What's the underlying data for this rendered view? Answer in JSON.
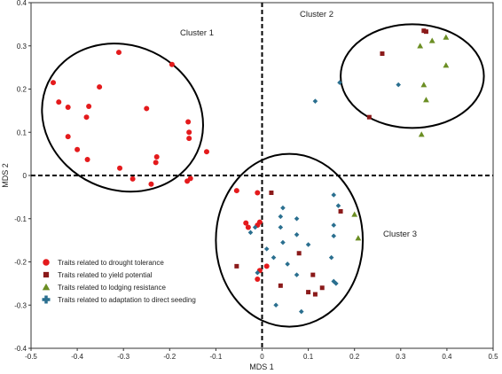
{
  "chart_data": {
    "type": "scatter",
    "title": "",
    "xlabel": "MDS 1",
    "ylabel": "MDS 2",
    "xlim": [
      -0.5,
      0.5
    ],
    "ylim": [
      -0.4,
      0.4
    ],
    "xticks": [
      "-0.5",
      "-0.4",
      "-0.3",
      "-0.2",
      "-0.1",
      "0",
      "0.1",
      "0.2",
      "0.3",
      "0.4",
      "0.5"
    ],
    "yticks": [
      "0.4",
      "0.3",
      "0.2",
      "0.1",
      "0",
      "-0.1",
      "-0.2",
      "-0.3",
      "-0.4"
    ],
    "reference_lines": {
      "x": 0,
      "y": 0,
      "style": "dashed"
    },
    "legend_position": "bottom-left",
    "series": [
      {
        "name": "Traits related to drought tolerance",
        "marker": "circle",
        "color": "#e41a1c",
        "points": [
          [
            -0.452,
            0.215
          ],
          [
            -0.44,
            0.17
          ],
          [
            -0.42,
            0.158
          ],
          [
            -0.375,
            0.16
          ],
          [
            -0.352,
            0.205
          ],
          [
            -0.31,
            0.285
          ],
          [
            -0.195,
            0.257
          ],
          [
            -0.25,
            0.155
          ],
          [
            -0.38,
            0.135
          ],
          [
            -0.16,
            0.124
          ],
          [
            -0.158,
            0.1
          ],
          [
            -0.42,
            0.09
          ],
          [
            -0.158,
            0.086
          ],
          [
            -0.4,
            0.06
          ],
          [
            -0.12,
            0.055
          ],
          [
            -0.378,
            0.037
          ],
          [
            -0.228,
            0.043
          ],
          [
            -0.23,
            0.03
          ],
          [
            -0.308,
            0.017
          ],
          [
            -0.28,
            -0.008
          ],
          [
            -0.162,
            -0.013
          ],
          [
            -0.155,
            -0.007
          ],
          [
            -0.24,
            -0.02
          ],
          [
            -0.055,
            -0.035
          ],
          [
            -0.01,
            -0.04
          ],
          [
            -0.035,
            -0.11
          ],
          [
            -0.005,
            -0.108
          ],
          [
            -0.03,
            -0.12
          ],
          [
            -0.01,
            -0.115
          ],
          [
            0.01,
            -0.21
          ],
          [
            -0.005,
            -0.22
          ],
          [
            -0.01,
            -0.24
          ]
        ]
      },
      {
        "name": "Traits related to yield potential",
        "marker": "square",
        "color": "#8b1a1a",
        "points": [
          [
            0.35,
            0.335
          ],
          [
            0.355,
            0.333
          ],
          [
            0.26,
            0.282
          ],
          [
            0.232,
            0.135
          ],
          [
            0.02,
            -0.04
          ],
          [
            0.17,
            -0.083
          ],
          [
            -0.055,
            -0.21
          ],
          [
            0.08,
            -0.18
          ],
          [
            0.11,
            -0.23
          ],
          [
            0.04,
            -0.255
          ],
          [
            0.13,
            -0.26
          ],
          [
            0.115,
            -0.275
          ],
          [
            0.1,
            -0.27
          ]
        ]
      },
      {
        "name": "Traits related to lodging resistance",
        "marker": "triangle",
        "color": "#6b8e23",
        "points": [
          [
            0.398,
            0.32
          ],
          [
            0.368,
            0.312
          ],
          [
            0.342,
            0.3
          ],
          [
            0.398,
            0.255
          ],
          [
            0.35,
            0.21
          ],
          [
            0.355,
            0.175
          ],
          [
            0.345,
            0.095
          ],
          [
            0.2,
            -0.09
          ],
          [
            0.208,
            -0.145
          ]
        ]
      },
      {
        "name": "Traits related to adaptation to direct seeding",
        "marker": "diamond",
        "color": "#2a6f8f",
        "points": [
          [
            0.168,
            0.215
          ],
          [
            0.295,
            0.21
          ],
          [
            0.115,
            0.172
          ],
          [
            0.155,
            -0.045
          ],
          [
            0.165,
            -0.07
          ],
          [
            0.045,
            -0.075
          ],
          [
            0.04,
            -0.095
          ],
          [
            0.075,
            -0.1
          ],
          [
            0.155,
            -0.115
          ],
          [
            0.04,
            -0.12
          ],
          [
            -0.015,
            -0.12
          ],
          [
            -0.025,
            -0.132
          ],
          [
            0.075,
            -0.137
          ],
          [
            0.155,
            -0.14
          ],
          [
            0.045,
            -0.155
          ],
          [
            0.1,
            -0.16
          ],
          [
            0.01,
            -0.17
          ],
          [
            0.025,
            -0.19
          ],
          [
            0.055,
            -0.205
          ],
          [
            0.15,
            -0.19
          ],
          [
            -0.01,
            -0.225
          ],
          [
            0.075,
            -0.23
          ],
          [
            0.155,
            -0.245
          ],
          [
            0.16,
            -0.25
          ],
          [
            0.03,
            -0.3
          ],
          [
            0.085,
            -0.315
          ]
        ]
      }
    ],
    "clusters": [
      {
        "label": "Cluster 1",
        "center": [
          -0.302,
          0.134
        ],
        "radii": [
          0.178,
          0.167
        ],
        "rotation_deg": 25
      },
      {
        "label": "Cluster 2",
        "center": [
          0.325,
          0.23
        ],
        "radii": [
          0.155,
          0.12
        ],
        "rotation_deg": 0
      },
      {
        "label": "Cluster 3",
        "center": [
          0.059,
          -0.15
        ],
        "radii": [
          0.159,
          0.2
        ],
        "rotation_deg": 0
      }
    ]
  }
}
